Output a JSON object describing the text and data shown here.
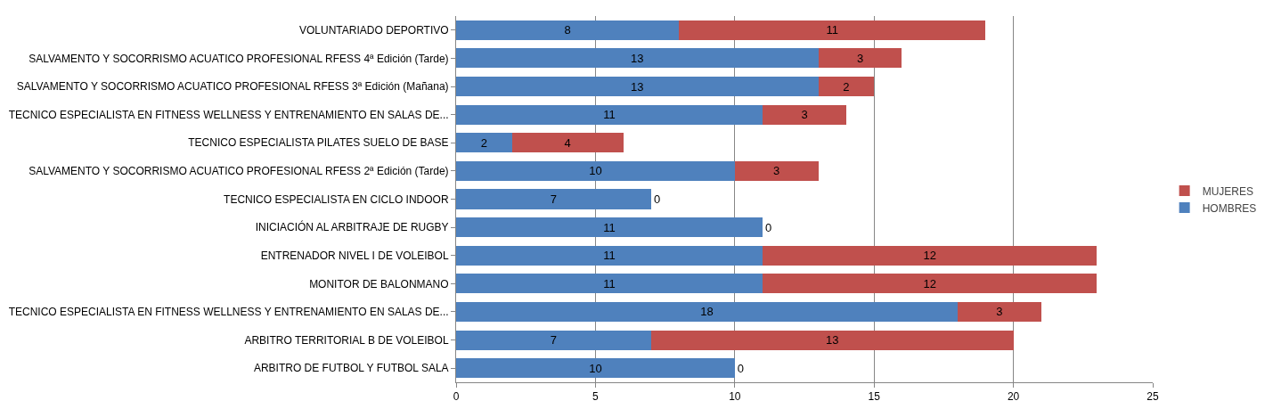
{
  "chart_data": {
    "type": "bar",
    "orientation": "horizontal",
    "stacked": true,
    "data_labels": true,
    "grid": "x",
    "legend": "right",
    "categories": [
      "VOLUNTARIADO DEPORTIVO",
      "SALVAMENTO Y SOCORRISMO ACUATICO PROFESIONAL RFESS 4ª Edición (Tarde)",
      "SALVAMENTO Y SOCORRISMO ACUATICO PROFESIONAL RFESS 3ª Edición (Mañana)",
      "TECNICO ESPECIALISTA EN FITNESS WELLNESS Y ENTRENAMIENTO EN SALAS DE...",
      "TECNICO ESPECIALISTA PILATES SUELO DE BASE",
      "SALVAMENTO Y SOCORRISMO ACUATICO PROFESIONAL RFESS 2ª Edición (Tarde)",
      "TECNICO ESPECIALISTA EN CICLO INDOOR",
      "INICIACIÓN AL ARBITRAJE DE RUGBY",
      "ENTRENADOR NIVEL I DE VOLEIBOL",
      "MONITOR DE BALONMANO",
      "TECNICO ESPECIALISTA EN FITNESS WELLNESS Y ENTRENAMIENTO EN SALAS DE...",
      "ARBITRO TERRITORIAL B DE VOLEIBOL",
      "ARBITRO DE FUTBOL Y FUTBOL SALA"
    ],
    "series": [
      {
        "name": "HOMBRES",
        "color": "#4f81bd",
        "values": [
          8,
          13,
          13,
          11,
          2,
          10,
          7,
          11,
          11,
          11,
          18,
          7,
          10
        ]
      },
      {
        "name": "MUJERES",
        "color": "#c0504d",
        "values": [
          11,
          3,
          2,
          3,
          4,
          3,
          0,
          0,
          12,
          12,
          3,
          13,
          0
        ]
      }
    ],
    "xlim": [
      0,
      25
    ],
    "xticks": [
      0,
      5,
      10,
      15,
      20,
      25
    ]
  }
}
